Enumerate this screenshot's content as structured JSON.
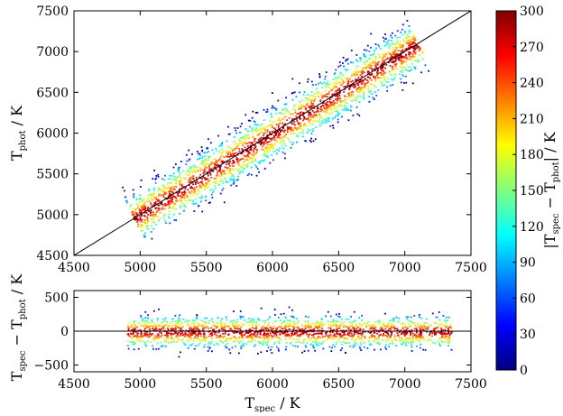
{
  "chart_data": [
    {
      "type": "heatmap",
      "title": "",
      "xlim": [
        4500,
        7500
      ],
      "ylim": [
        4500,
        7500
      ],
      "x_ticks": [
        4500,
        5000,
        5500,
        6000,
        6500,
        7000,
        7500
      ],
      "y_ticks": [
        4500,
        5000,
        5500,
        6000,
        6500,
        7000,
        7500
      ],
      "x_tick_labels": [
        "4500",
        "5000",
        "5500",
        "6000",
        "6500",
        "7000",
        "7500"
      ],
      "y_tick_labels": [
        "4500",
        "5000",
        "5500",
        "6000",
        "6500",
        "7000",
        "7500"
      ],
      "ylabel": {
        "base": "T",
        "sub": "phot",
        "unit": " / K"
      },
      "reference_line": {
        "x": [
          4500,
          7500
        ],
        "y": [
          4500,
          7500
        ]
      },
      "density_ridge": {
        "x": [
          5000,
          5500,
          6000,
          6500,
          7000
        ],
        "y": [
          5000,
          5500,
          6000,
          6500,
          7000
        ],
        "abs_residual_max": [
          300,
          300,
          300,
          300,
          300
        ]
      },
      "grid": false
    },
    {
      "type": "heatmap",
      "title": "",
      "xlim": [
        4500,
        7500
      ],
      "ylim": [
        -600,
        600
      ],
      "x_ticks": [
        4500,
        5000,
        5500,
        6000,
        6500,
        7000,
        7500
      ],
      "y_ticks": [
        -500,
        0,
        500
      ],
      "x_tick_labels": [
        "4500",
        "5000",
        "5500",
        "6000",
        "6500",
        "7000",
        "7500"
      ],
      "y_tick_labels": [
        "−500",
        "0",
        "500"
      ],
      "xlabel": {
        "base": "T",
        "sub": "spec",
        "unit": " / K"
      },
      "ylabel": {
        "base": "T",
        "sub": "spec",
        "minus": " − ",
        "base2": "T",
        "sub2": "phot",
        "unit": " / K"
      },
      "reference_line": {
        "x": [
          4500,
          7500
        ],
        "y": [
          0,
          0
        ]
      },
      "density_band": {
        "x": [
          4900,
          5500,
          6000,
          6500,
          7000,
          7300
        ],
        "residual_halfwidth": [
          150,
          200,
          300,
          300,
          300,
          200
        ]
      },
      "grid": false
    }
  ],
  "colorbar": {
    "range": [
      0,
      300
    ],
    "ticks": [
      0,
      30,
      60,
      90,
      120,
      150,
      180,
      210,
      240,
      270,
      300
    ],
    "tick_labels": [
      "0",
      "30",
      "60",
      "90",
      "120",
      "150",
      "180",
      "210",
      "240",
      "270",
      "300"
    ],
    "label": {
      "open": "|T",
      "sub": "spec",
      "minus": " − ",
      "base2": "T",
      "sub2": "phot",
      "close": "| / K"
    },
    "colormap": "jet",
    "colors": [
      "#00007f",
      "#0000ff",
      "#007fff",
      "#00ffff",
      "#7fff7f",
      "#ffff00",
      "#ff7f00",
      "#ff0000",
      "#7f0000"
    ]
  },
  "scatter_color": "#666666"
}
